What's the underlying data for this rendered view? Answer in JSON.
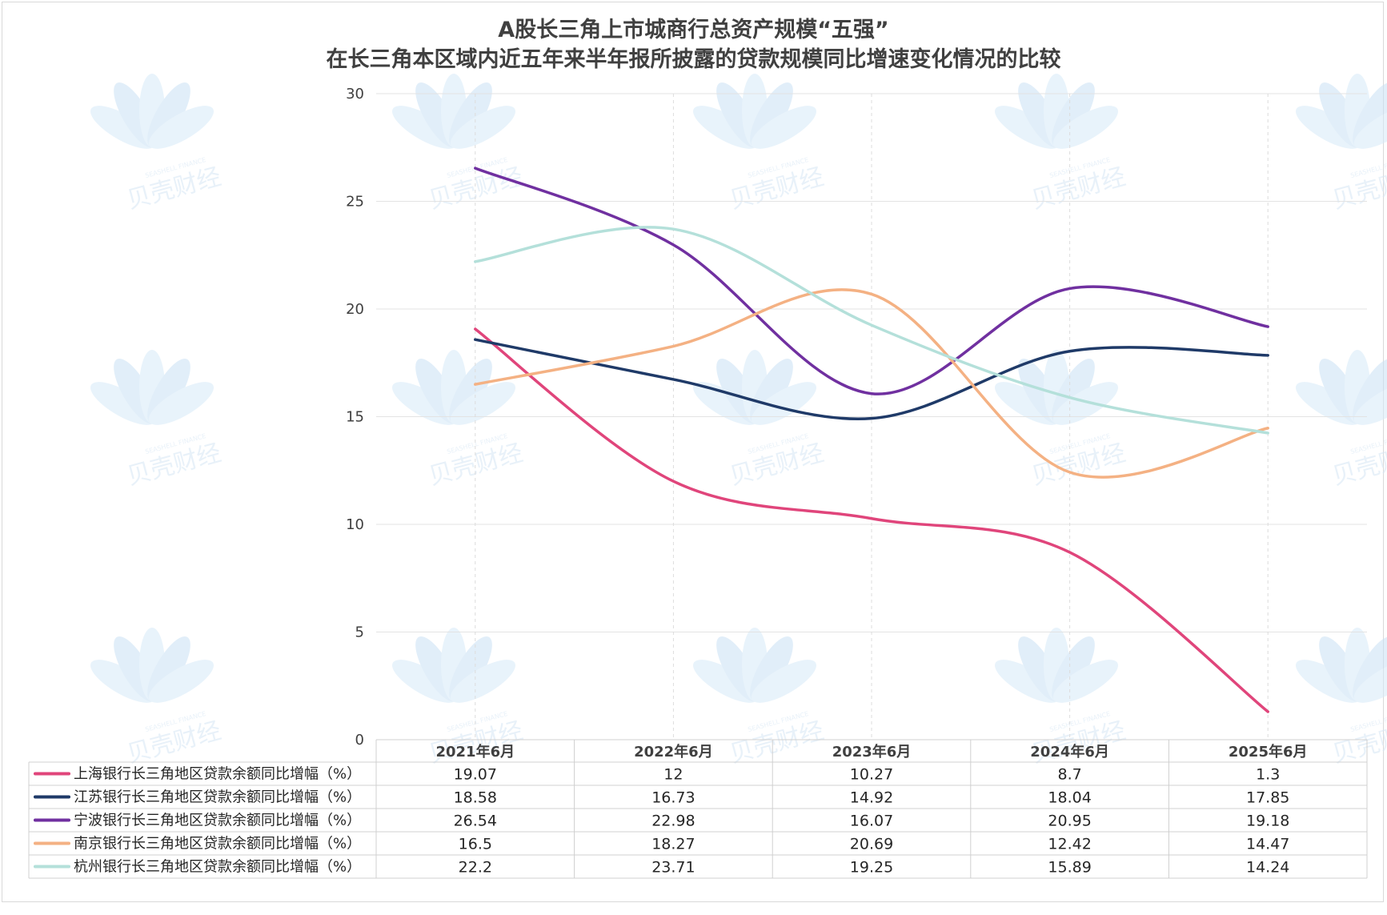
{
  "title_line1": "A股长三角上市城商行总资产规模“五强”",
  "title_line2": "在长三角本区域内近五年来半年报所披露的贷款规模同比增速变化情况的比较",
  "watermark": {
    "text_cn": "贝壳财经",
    "text_en": "SEASHELL FINANCE"
  },
  "chart_data": {
    "type": "line",
    "title": "A股长三角上市城商行总资产规模“五强” 在长三角本区域内近五年来半年报所披露的贷款规模同比增速变化情况的比较",
    "categories": [
      "2021年6月",
      "2022年6月",
      "2023年6月",
      "2024年6月",
      "2025年6月"
    ],
    "ylim": [
      0,
      30
    ],
    "yticks": [
      0,
      5,
      10,
      15,
      20,
      25,
      30
    ],
    "grid": true,
    "legend": "data-table-left",
    "series": [
      {
        "name": "上海银行长三角地区贷款余额同比增幅（%）",
        "color": "#e0457b",
        "values": [
          19.07,
          12,
          10.27,
          8.7,
          1.3
        ]
      },
      {
        "name": "江苏银行长三角地区贷款余额同比增幅（%）",
        "color": "#1f3a68",
        "values": [
          18.58,
          16.73,
          14.92,
          18.04,
          17.85
        ]
      },
      {
        "name": "宁波银行长三角地区贷款余额同比增幅（%）",
        "color": "#7030a0",
        "values": [
          26.54,
          22.98,
          16.07,
          20.95,
          19.18
        ]
      },
      {
        "name": "南京银行长三角地区贷款余额同比增幅（%）",
        "color": "#f4b183",
        "values": [
          16.5,
          18.27,
          20.69,
          12.42,
          14.47
        ]
      },
      {
        "name": "杭州银行长三角地区贷款余额同比增幅（%）",
        "color": "#b4e0da",
        "values": [
          22.2,
          23.71,
          19.25,
          15.89,
          14.24
        ]
      }
    ]
  }
}
